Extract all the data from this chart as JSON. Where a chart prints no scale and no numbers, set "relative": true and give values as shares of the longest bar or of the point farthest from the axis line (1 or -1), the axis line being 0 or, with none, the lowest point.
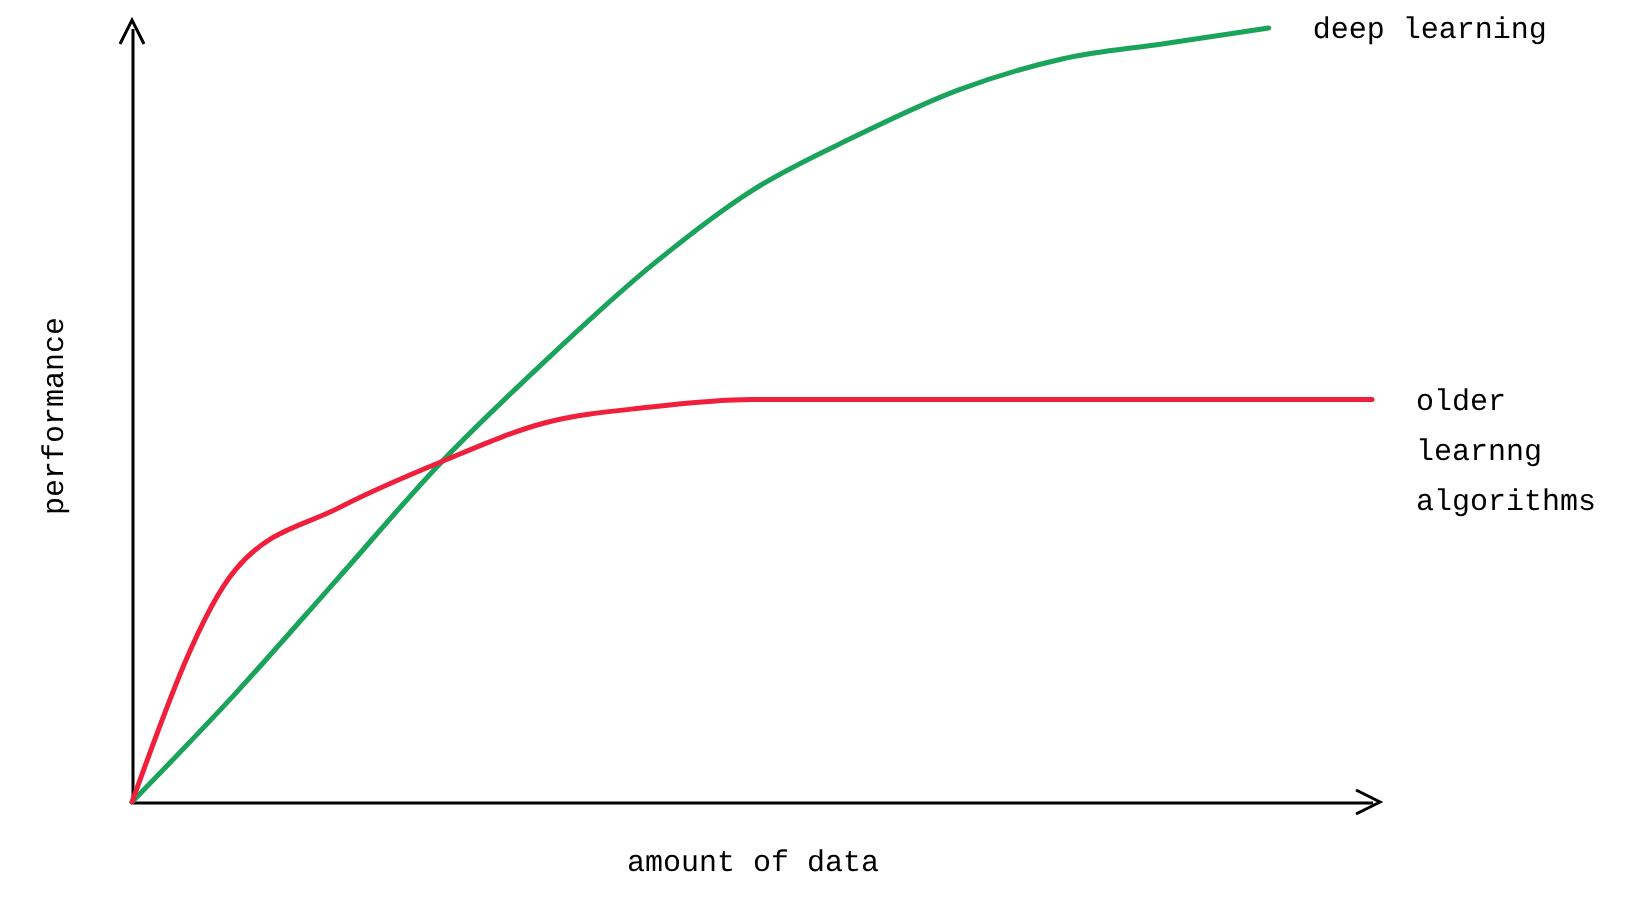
{
  "chart_data": {
    "type": "line",
    "relative": true,
    "xlabel": "amount of data",
    "ylabel": "performance",
    "grid": false,
    "marker": "none",
    "line_style": "solid",
    "categories": [
      null,
      null,
      null,
      null,
      null,
      null,
      null,
      null,
      null,
      null,
      null,
      null,
      null
    ],
    "series": [
      {
        "name": "deep learning",
        "color": "#1aa35a",
        "values": [
          0,
          0.14,
          0.29,
          0.44,
          0.57,
          0.69,
          0.79,
          0.86,
          0.92,
          0.96,
          0.98,
          1.0,
          null
        ]
      },
      {
        "name": "older learnng algorithms",
        "color": "#f0203c",
        "values": [
          0,
          0.3,
          0.38,
          0.44,
          0.49,
          0.51,
          0.52,
          0.52,
          0.52,
          0.52,
          0.52,
          0.52,
          0.52
        ]
      }
    ]
  }
}
